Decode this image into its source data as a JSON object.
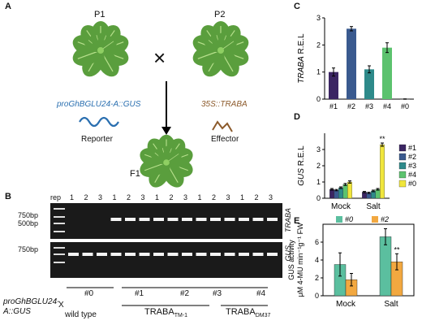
{
  "panels": {
    "A": "A",
    "B": "B",
    "C": "C",
    "D": "D",
    "E": "E"
  },
  "cross": {
    "p1_label": "P1",
    "p2_label": "P2",
    "cross_symbol": "×",
    "reporter_construct": "proGhBGLU24-A::GUS",
    "effector_construct": "35S::TRABA",
    "reporter_label": "Reporter",
    "effector_label": "Effector",
    "f1_label": "F1"
  },
  "gel": {
    "rep_label": "rep",
    "lane_numbers": [
      "1",
      "2",
      "3",
      "1",
      "2",
      "3",
      "1",
      "2",
      "3",
      "1",
      "2",
      "3",
      "1",
      "2",
      "3"
    ],
    "size_top_1": "750bp",
    "size_top_2": "500bp",
    "size_bottom": "750bp",
    "right_label_top": "TRABA",
    "right_label_bottom": "GUS",
    "group_labels": [
      "#0",
      "#1",
      "#2",
      "#3",
      "#4"
    ],
    "left_construct": "proGhBGLU24-A::GUS",
    "x_mark": "X",
    "wild_type": "wild type",
    "traba_tm1_main": "TRABA",
    "traba_tm1_sub": "TM-1",
    "traba_dm37_main": "TRABA",
    "traba_dm37_sub": "DM37"
  },
  "chart_data": [
    {
      "panel": "C",
      "type": "bar",
      "categories": [
        "#1",
        "#2",
        "#3",
        "#4",
        "#0"
      ],
      "values": [
        1.0,
        2.6,
        1.1,
        1.9,
        0.0
      ],
      "errors": [
        0.15,
        0.08,
        0.13,
        0.18,
        0.01
      ],
      "colors": [
        "#3b2563",
        "#3a5a8f",
        "#2e8a8a",
        "#5cc26e",
        "#7a7a7a"
      ],
      "ylabel_main": "TRABA",
      "ylabel_rest": " R.E.L",
      "ylim": [
        0,
        3
      ],
      "yticks": [
        "0",
        "1",
        "2",
        "3"
      ],
      "grid": false
    },
    {
      "panel": "D",
      "type": "bar",
      "categories": [
        "Mock",
        "Salt"
      ],
      "series": [
        {
          "name": "#1",
          "color": "#3b2563",
          "values": [
            0.55,
            0.38
          ],
          "errors": [
            0.05,
            0.04
          ]
        },
        {
          "name": "#2",
          "color": "#3a5a8f",
          "values": [
            0.5,
            0.33
          ],
          "errors": [
            0.04,
            0.04
          ]
        },
        {
          "name": "#3",
          "color": "#2e8a8a",
          "values": [
            0.65,
            0.45
          ],
          "errors": [
            0.05,
            0.05
          ]
        },
        {
          "name": "#4",
          "color": "#5cc26e",
          "values": [
            0.85,
            0.55
          ],
          "errors": [
            0.06,
            0.05
          ]
        },
        {
          "name": "#0",
          "color": "#f0e63c",
          "values": [
            1.0,
            3.3
          ],
          "errors": [
            0.07,
            0.1
          ]
        }
      ],
      "annotations": [
        {
          "text": "**"
        }
      ],
      "ylabel_main": "GUS",
      "ylabel_rest": " R.E.L",
      "ylim": [
        0,
        4
      ],
      "yticks": [
        "0",
        "1",
        "2",
        "3"
      ],
      "legend_position": "right",
      "grid": false
    },
    {
      "panel": "E",
      "type": "bar",
      "categories": [
        "Mock",
        "Salt"
      ],
      "series": [
        {
          "name": "#0",
          "color": "#5bbf9f",
          "values": [
            3.5,
            6.6
          ],
          "errors": [
            1.3,
            0.9
          ]
        },
        {
          "name": "#2",
          "color": "#f2a840",
          "values": [
            1.8,
            3.8
          ],
          "errors": [
            0.7,
            0.9
          ]
        }
      ],
      "annotations": [
        {
          "text": "**"
        }
      ],
      "ylabel_line1": "GUS  activity",
      "ylabel_line2": "μM 4-MU min⁻¹g⁻¹ FW",
      "ylim": [
        0,
        8
      ],
      "yticks": [
        "0",
        "2",
        "4",
        "6"
      ],
      "legend_position": "top",
      "grid": false
    }
  ]
}
